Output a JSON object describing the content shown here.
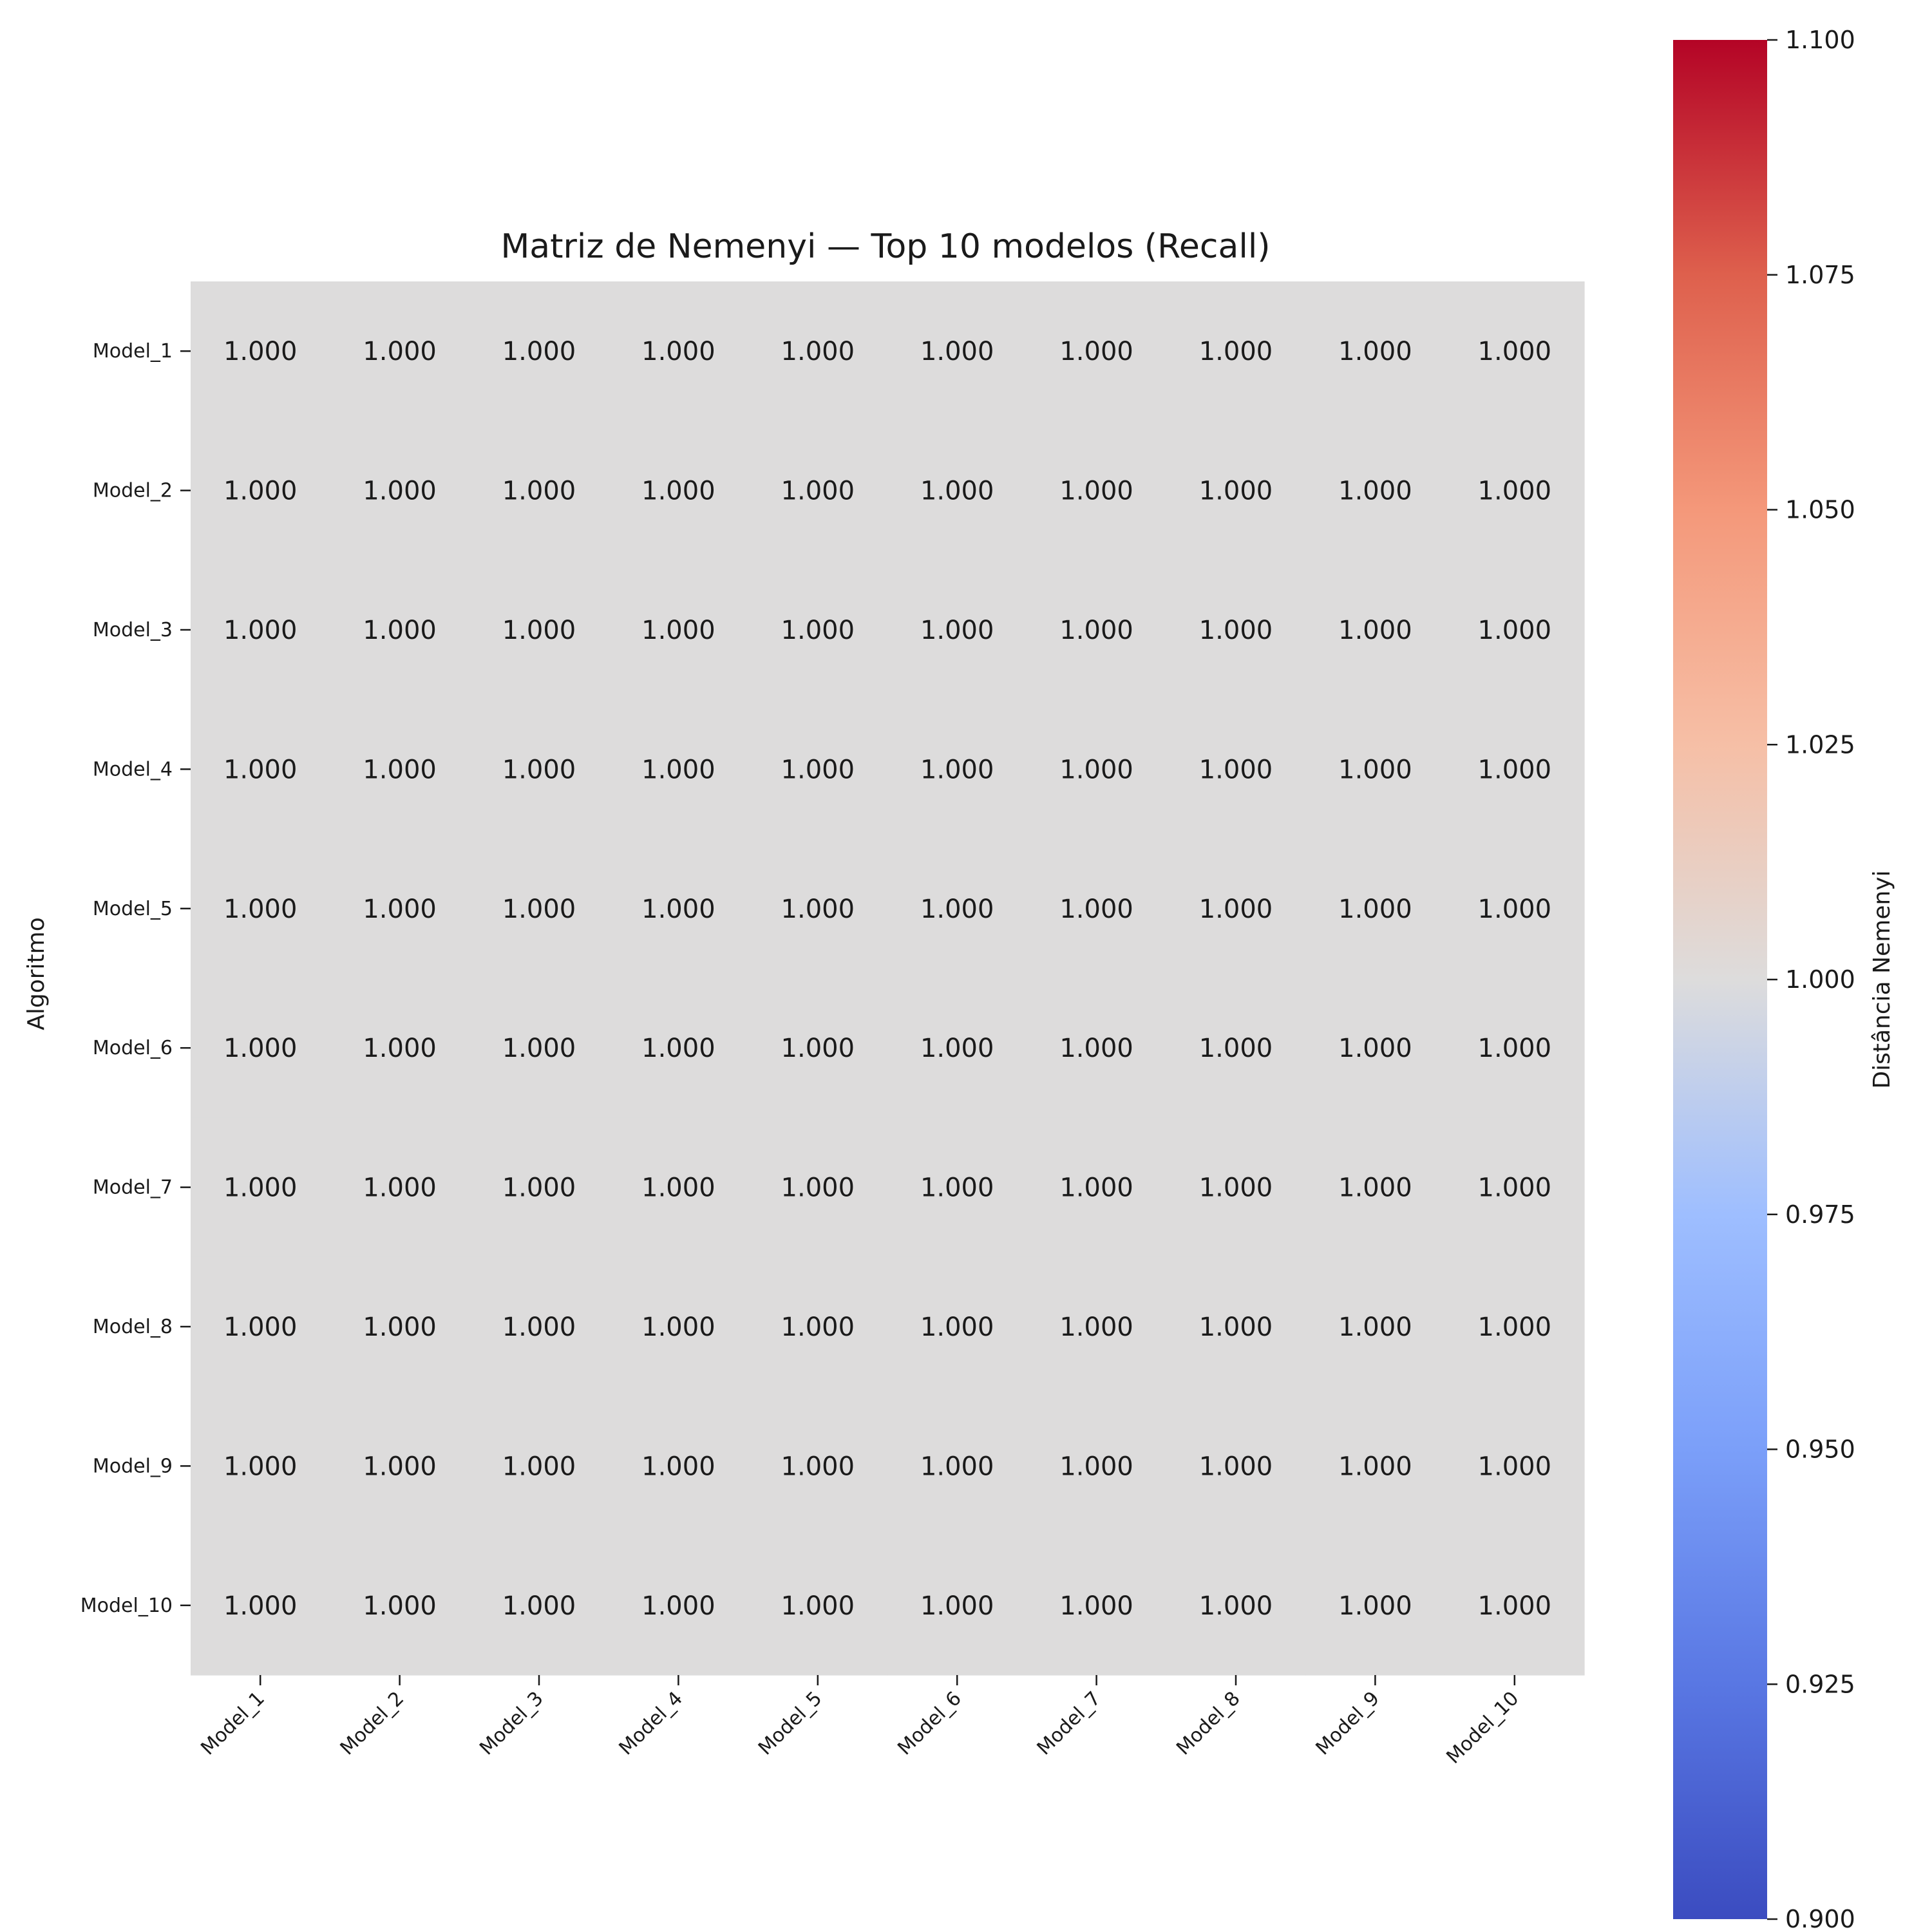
{
  "chart_data": {
    "type": "heatmap",
    "title": "Matriz de Nemenyi — Top 10 modelos (Recall)",
    "xlabel": "",
    "ylabel": "Algoritmo",
    "rows": [
      "Model_1",
      "Model_2",
      "Model_3",
      "Model_4",
      "Model_5",
      "Model_6",
      "Model_7",
      "Model_8",
      "Model_9",
      "Model_10"
    ],
    "cols": [
      "Model_1",
      "Model_2",
      "Model_3",
      "Model_4",
      "Model_5",
      "Model_6",
      "Model_7",
      "Model_8",
      "Model_9",
      "Model_10"
    ],
    "values": [
      [
        1,
        1,
        1,
        1,
        1,
        1,
        1,
        1,
        1,
        1
      ],
      [
        1,
        1,
        1,
        1,
        1,
        1,
        1,
        1,
        1,
        1
      ],
      [
        1,
        1,
        1,
        1,
        1,
        1,
        1,
        1,
        1,
        1
      ],
      [
        1,
        1,
        1,
        1,
        1,
        1,
        1,
        1,
        1,
        1
      ],
      [
        1,
        1,
        1,
        1,
        1,
        1,
        1,
        1,
        1,
        1
      ],
      [
        1,
        1,
        1,
        1,
        1,
        1,
        1,
        1,
        1,
        1
      ],
      [
        1,
        1,
        1,
        1,
        1,
        1,
        1,
        1,
        1,
        1
      ],
      [
        1,
        1,
        1,
        1,
        1,
        1,
        1,
        1,
        1,
        1
      ],
      [
        1,
        1,
        1,
        1,
        1,
        1,
        1,
        1,
        1,
        1
      ],
      [
        1,
        1,
        1,
        1,
        1,
        1,
        1,
        1,
        1,
        1
      ]
    ],
    "value_format_decimals": 3,
    "colorbar": {
      "label": "Distância Nemenyi",
      "min": 0.9,
      "max": 1.1,
      "ticks": [
        "0.900",
        "0.925",
        "0.950",
        "0.975",
        "1.000",
        "1.025",
        "1.050",
        "1.075",
        "1.100"
      ],
      "colormap": "coolwarm",
      "placement": "right"
    },
    "grid": false
  }
}
